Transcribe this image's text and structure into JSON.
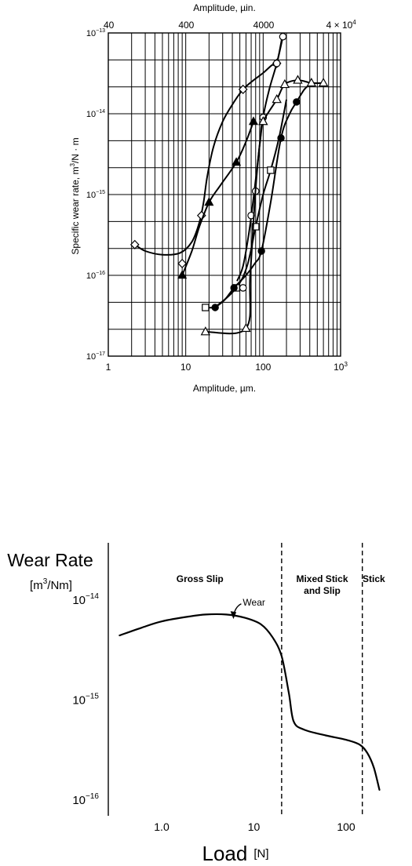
{
  "chart_data": [
    {
      "type": "scatter",
      "top_axis_label": "Amplitude, µin.",
      "top_ticks": [
        {
          "label": "40",
          "value_um": 1.016
        },
        {
          "label": "400",
          "value_um": 10.16
        },
        {
          "label": "4000",
          "value_um": 101.6
        },
        {
          "label": "4 × 10",
          "sup": "4",
          "value_um": 1016
        }
      ],
      "xlabel": "Amplitude, µm.",
      "ylabel": "Specific wear rate, m",
      "ylabel_sup": "3",
      "ylabel_tail": "/N · m",
      "xscale": "log",
      "yscale": "log",
      "xlim": [
        1,
        1000
      ],
      "ylim": [
        1e-17,
        1e-13
      ],
      "x_ticks": [
        {
          "label": "1",
          "value": 1
        },
        {
          "label": "10",
          "value": 10
        },
        {
          "label": "100",
          "value": 100
        },
        {
          "label": "10",
          "sup": "3",
          "value": 1000
        }
      ],
      "y_ticks": [
        {
          "base": "10",
          "sup": "−17",
          "value": 1e-17
        },
        {
          "base": "10",
          "sup": "−16",
          "value": 1e-16
        },
        {
          "base": "10",
          "sup": "−15",
          "value": 1e-15
        },
        {
          "base": "10",
          "sup": "−14",
          "value": 1e-14
        },
        {
          "base": "10",
          "sup": "−13",
          "value": 1e-13
        }
      ],
      "grid": true,
      "series": [
        {
          "marker": "diamond-open",
          "points": [
            [
              2.2,
              2.4e-16
            ],
            [
              9,
              1.4e-16
            ],
            [
              16,
              5.5e-16
            ],
            [
              55,
              2e-14
            ],
            [
              150,
              4.2e-14
            ]
          ],
          "curve": [
            [
              2.2,
              2.4e-16
            ],
            [
              3,
              2e-16
            ],
            [
              5,
              1.8e-16
            ],
            [
              8.5,
              1.9e-16
            ],
            [
              12,
              2.6e-16
            ],
            [
              15,
              4.5e-16
            ],
            [
              17,
              8e-16
            ],
            [
              19,
              1.7e-15
            ],
            [
              23,
              4e-15
            ],
            [
              30,
              8e-15
            ],
            [
              40,
              1.3e-14
            ],
            [
              55,
              2e-14
            ],
            [
              75,
              2.6e-14
            ],
            [
              100,
              3.2e-14
            ],
            [
              130,
              4e-14
            ],
            [
              150,
              4.2e-14
            ],
            [
              180,
              1e-13
            ]
          ]
        },
        {
          "marker": "circle-open",
          "points": [
            [
              180,
              9e-14
            ],
            [
              150,
              4.2e-14
            ],
            [
              100,
              9e-15
            ],
            [
              80,
              1.1e-15
            ],
            [
              70,
              5.5e-16
            ],
            [
              55,
              7e-17
            ]
          ],
          "curve": [
            [
              46,
              8.5e-17
            ],
            [
              55,
              1.3e-16
            ],
            [
              66,
              3.5e-16
            ],
            [
              75,
              9e-16
            ],
            [
              85,
              2.5e-15
            ],
            [
              100,
              9e-15
            ],
            [
              120,
              2e-14
            ],
            [
              150,
              4.2e-14
            ],
            [
              180,
              9e-14
            ]
          ]
        },
        {
          "marker": "triangle-filled",
          "points": [
            [
              9,
              1e-16
            ],
            [
              20,
              8e-16
            ],
            [
              45,
              2.5e-15
            ],
            [
              75,
              8e-15
            ]
          ],
          "curve": [
            [
              9,
              1e-16
            ],
            [
              12,
              2e-16
            ],
            [
              15,
              4e-16
            ],
            [
              20,
              8e-16
            ],
            [
              28,
              1.3e-15
            ],
            [
              45,
              2.5e-15
            ],
            [
              60,
              4.5e-15
            ],
            [
              75,
              8e-15
            ]
          ]
        },
        {
          "marker": "square-open",
          "points": [
            [
              18,
              4e-17
            ],
            [
              45,
              7e-17
            ],
            [
              80,
              4e-16
            ],
            [
              125,
              2e-15
            ]
          ],
          "curve": [
            [
              18,
              4e-17
            ],
            [
              25,
              4.2e-17
            ],
            [
              45,
              7e-17
            ],
            [
              62,
              1.3e-16
            ],
            [
              80,
              4e-16
            ],
            [
              100,
              1e-15
            ],
            [
              125,
              2e-15
            ],
            [
              160,
              5e-15
            ],
            [
              200,
              1.5e-14
            ]
          ]
        },
        {
          "marker": "circle-filled",
          "points": [
            [
              24,
              4e-17
            ],
            [
              42,
              7e-17
            ],
            [
              95,
              2e-16
            ],
            [
              170,
              5e-15
            ],
            [
              270,
              1.4e-14
            ]
          ],
          "curve": [
            [
              24,
              4e-17
            ],
            [
              32,
              5e-17
            ],
            [
              42,
              7e-17
            ],
            [
              60,
              1e-16
            ],
            [
              78,
              1.4e-16
            ],
            [
              95,
              2e-16
            ],
            [
              125,
              8e-16
            ],
            [
              170,
              5e-15
            ],
            [
              220,
              1e-14
            ],
            [
              270,
              1.4e-14
            ],
            [
              340,
              2e-14
            ],
            [
              400,
              2.3e-14
            ]
          ]
        },
        {
          "marker": "triangle-open",
          "points": [
            [
              18,
              2e-17
            ],
            [
              60,
              2.2e-17
            ],
            [
              100,
              8e-15
            ],
            [
              150,
              1.5e-14
            ],
            [
              190,
              2.3e-14
            ],
            [
              280,
              2.6e-14
            ],
            [
              420,
              2.4e-14
            ],
            [
              600,
              2.4e-14
            ]
          ],
          "curve": [
            [
              18,
              2e-17
            ],
            [
              60,
              2.2e-17
            ],
            [
              68,
              1e-16
            ],
            [
              80,
              1.2e-15
            ],
            [
              92,
              5e-15
            ],
            [
              100,
              8e-15
            ],
            [
              150,
              1.5e-14
            ],
            [
              190,
              2.3e-14
            ],
            [
              280,
              2.6e-14
            ],
            [
              420,
              2.4e-14
            ],
            [
              600,
              2.4e-14
            ]
          ]
        }
      ]
    },
    {
      "type": "line",
      "ylabel": "Wear Rate",
      "yunit": "[m",
      "yunit_sup": "3",
      "yunit_tail": "/Nm]",
      "xlabel": "Load",
      "xunit": "[N]",
      "xscale": "log",
      "yscale": "log",
      "xlim": [
        0.3,
        250
      ],
      "ylim": [
        1e-16,
        1e-13
      ],
      "x_ticks": [
        {
          "label": "1.0",
          "value": 1
        },
        {
          "label": "10",
          "value": 10
        },
        {
          "label": "100",
          "value": 100
        }
      ],
      "y_ticks": [
        {
          "base": "10",
          "sup": "−14",
          "value": 1e-14
        },
        {
          "base": "10",
          "sup": "−15",
          "value": 1e-15
        },
        {
          "base": "10",
          "sup": "−16",
          "value": 1e-16
        }
      ],
      "regions": [
        {
          "label_lines": [
            "Gross Slip"
          ],
          "x_center": 2.6
        },
        {
          "label_lines": [
            "Mixed Stick",
            "and Slip"
          ],
          "x_center": 55
        },
        {
          "label_lines": [
            "Stick"
          ],
          "x_center": 200
        }
      ],
      "boundaries": [
        20,
        150
      ],
      "curve_label": "Wear",
      "curve_label_at": [
        6,
        7e-15
      ],
      "series": [
        {
          "name": "Wear",
          "points": [
            [
              0.35,
              4.2e-15
            ],
            [
              0.6,
              5e-15
            ],
            [
              1,
              5.8e-15
            ],
            [
              2,
              6.5e-15
            ],
            [
              3,
              6.8e-15
            ],
            [
              5,
              6.8e-15
            ],
            [
              8,
              6.3e-15
            ],
            [
              12,
              5.4e-15
            ],
            [
              16,
              4e-15
            ],
            [
              20,
              2.6e-15
            ],
            [
              24,
              1.1e-15
            ],
            [
              27,
              5.8e-16
            ],
            [
              35,
              4.8e-16
            ],
            [
              60,
              4.2e-16
            ],
            [
              100,
              3.8e-16
            ],
            [
              140,
              3.4e-16
            ],
            [
              170,
              2.8e-16
            ],
            [
              200,
              2e-16
            ],
            [
              230,
              1.2e-16
            ]
          ]
        }
      ]
    }
  ]
}
